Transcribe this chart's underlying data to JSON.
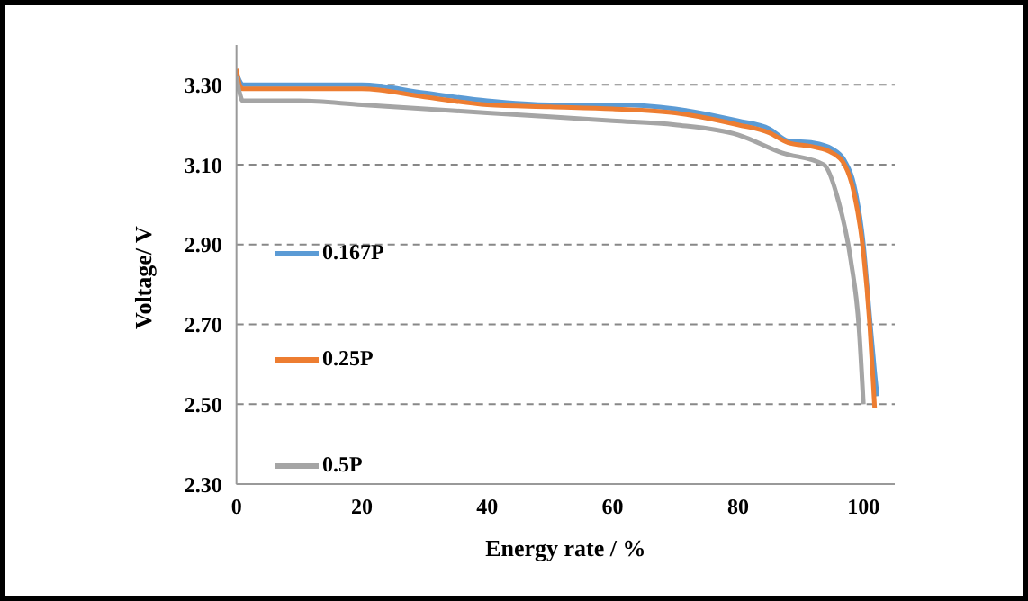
{
  "chart_data": {
    "type": "line",
    "xlabel": "Energy rate / %",
    "ylabel": "Voltage/ V",
    "xlim": [
      0,
      105
    ],
    "xticks": [
      0,
      20,
      40,
      60,
      80,
      100
    ],
    "ylim": [
      2.3,
      3.4
    ],
    "yticks": [
      {
        "value": 2.3,
        "label": "2.30"
      },
      {
        "value": 2.5,
        "label": "2.50"
      },
      {
        "value": 2.7,
        "label": "2.70"
      },
      {
        "value": 2.9,
        "label": "2.90"
      },
      {
        "value": 3.1,
        "label": "3.10"
      },
      {
        "value": 3.3,
        "label": "3.30"
      }
    ],
    "grid": "y",
    "legend": "left",
    "marker": "none",
    "line_style": "solid",
    "series": [
      {
        "name": "0.167P",
        "color": "#5b9bd5",
        "x": [
          0,
          0.5,
          1,
          10,
          20,
          30,
          40,
          50,
          60,
          70,
          80,
          85,
          88,
          92,
          95,
          97,
          98.5,
          100,
          101,
          101.8,
          102.2
        ],
        "values": [
          3.33,
          3.31,
          3.3,
          3.3,
          3.3,
          3.28,
          3.26,
          3.25,
          3.25,
          3.24,
          3.21,
          3.19,
          3.16,
          3.155,
          3.14,
          3.11,
          3.05,
          2.9,
          2.72,
          2.58,
          2.52
        ]
      },
      {
        "name": "0.25P",
        "color": "#ed7d31",
        "x": [
          0,
          0.5,
          1,
          10,
          20,
          30,
          40,
          50,
          60,
          70,
          80,
          85,
          88,
          92,
          95,
          97,
          98.5,
          100,
          101,
          101.5,
          101.8
        ],
        "values": [
          3.34,
          3.3,
          3.29,
          3.29,
          3.29,
          3.27,
          3.25,
          3.245,
          3.24,
          3.23,
          3.2,
          3.18,
          3.155,
          3.145,
          3.13,
          3.1,
          3.03,
          2.88,
          2.7,
          2.57,
          2.49
        ]
      },
      {
        "name": "0.5P",
        "color": "#a5a5a5",
        "x": [
          0,
          0.5,
          1,
          10,
          20,
          30,
          40,
          50,
          60,
          70,
          80,
          87,
          93.7,
          96,
          98,
          99.3,
          100
        ],
        "values": [
          3.32,
          3.28,
          3.26,
          3.26,
          3.25,
          3.24,
          3.23,
          3.22,
          3.21,
          3.2,
          3.175,
          3.13,
          3.1,
          3.01,
          2.86,
          2.69,
          2.5
        ]
      }
    ]
  }
}
